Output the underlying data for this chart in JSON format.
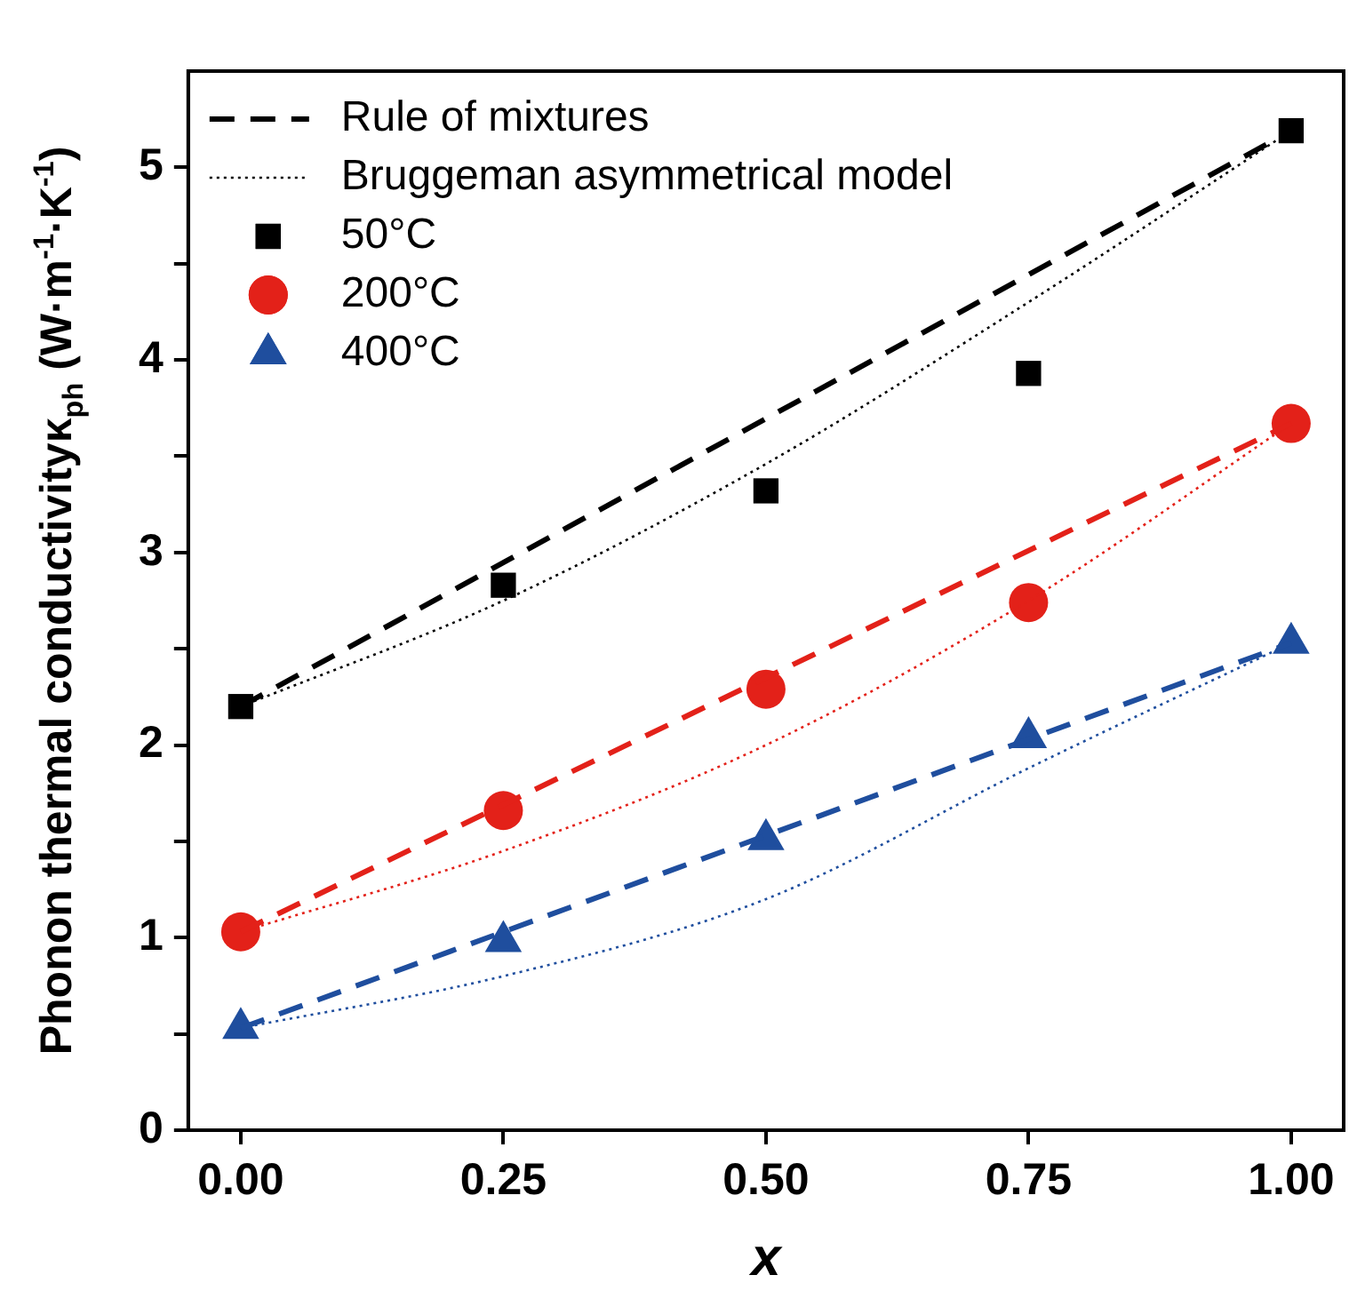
{
  "chart_data": {
    "type": "scatter",
    "xlabel": "x",
    "ylabel": "Phonon thermal conductivityκ$_{ph}$ (W·m$^{-1}$·K$^{-1}$)",
    "xlim": [
      -0.05,
      1.05
    ],
    "xticks": [
      {
        "value": 0,
        "label": "0.00"
      },
      0.25,
      {
        "value": 0.5,
        "label": "0.50"
      },
      0.75,
      {
        "value": 1,
        "label": "1.00"
      }
    ],
    "ylim": [
      0,
      5.5
    ],
    "yticks": [
      0,
      {
        "value": 0.5,
        "label": null
      },
      1,
      {
        "value": 1.5,
        "label": null
      },
      2,
      {
        "value": 2.5,
        "label": null
      },
      3,
      {
        "value": 3.5,
        "label": null
      },
      4,
      {
        "value": 4.5,
        "label": null
      },
      5
    ],
    "grid": false,
    "legend": "top left",
    "series": [
      {
        "type": "line",
        "name": "Rule of mixtures",
        "color": "#000000",
        "line_style": "dashed",
        "marker": "none",
        "x": [
          0,
          1
        ],
        "values": [
          2.2,
          5.19
        ]
      },
      {
        "type": "line",
        "name": "Bruggeman asymmetrical model",
        "color": "#000000",
        "line_style": "dotted",
        "marker": "none",
        "x": [
          0,
          0.25,
          0.5,
          0.75,
          1
        ],
        "values": [
          2.2,
          2.75,
          3.46,
          4.3,
          5.19
        ]
      },
      {
        "type": "line",
        "color": "#e32119",
        "line_style": "dashed",
        "marker": "none",
        "x": [
          0,
          1
        ],
        "values": [
          1.03,
          3.67
        ]
      },
      {
        "type": "line",
        "color": "#e32119",
        "line_style": "dotted",
        "marker": "none",
        "x": [
          0,
          0.25,
          0.5,
          0.75,
          1
        ],
        "values": [
          1.03,
          1.45,
          2.0,
          2.75,
          3.67
        ]
      },
      {
        "type": "line",
        "color": "#1f4e9e",
        "line_style": "dashed",
        "marker": "none",
        "x": [
          0,
          1
        ],
        "values": [
          0.53,
          2.53
        ]
      },
      {
        "type": "line",
        "color": "#1f4e9e",
        "line_style": "dotted",
        "marker": "none",
        "x": [
          0,
          0.25,
          0.5,
          0.75,
          1
        ],
        "values": [
          0.53,
          0.8,
          1.2,
          1.88,
          2.53
        ]
      },
      {
        "type": "scatter",
        "name": "50°C",
        "color": "#000000",
        "marker": "square",
        "x": [
          0,
          0.25,
          0.5,
          0.75,
          1
        ],
        "values": [
          2.2,
          2.83,
          3.32,
          3.93,
          5.19
        ]
      },
      {
        "type": "scatter",
        "name": "200°C",
        "color": "#e32119",
        "marker": "circle",
        "x": [
          0,
          0.25,
          0.5,
          0.75,
          1
        ],
        "values": [
          1.03,
          1.66,
          2.29,
          2.74,
          3.67
        ]
      },
      {
        "type": "scatter",
        "name": "400°C",
        "color": "#1f4e9e",
        "marker": "triangle",
        "x": [
          0,
          0.25,
          0.5,
          0.75,
          1
        ],
        "values": [
          0.53,
          0.98,
          1.51,
          2.04,
          2.53
        ]
      }
    ]
  }
}
